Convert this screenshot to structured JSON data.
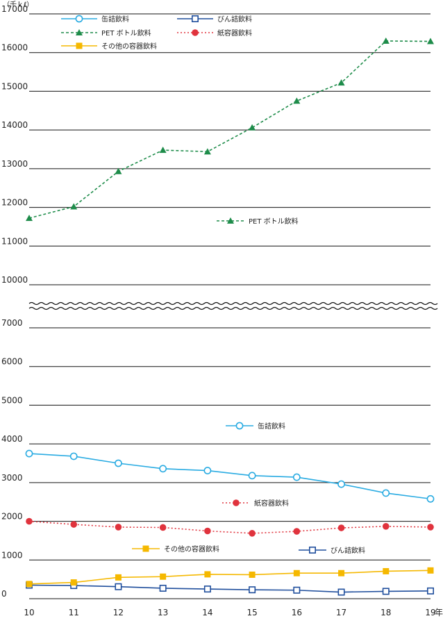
{
  "chart_data": {
    "type": "line",
    "unit": "（千ｋℓ）",
    "year_suffix": "年",
    "categories": [
      "10",
      "11",
      "12",
      "13",
      "14",
      "15",
      "16",
      "17",
      "18",
      "19"
    ],
    "y_axis_broken": true,
    "axis_break_between": [
      7500,
      9500
    ],
    "yticks_lower": [
      0,
      1000,
      2000,
      3000,
      4000,
      5000,
      6000,
      7000
    ],
    "yticks_upper": [
      10000,
      11000,
      12000,
      13000,
      14000,
      15000,
      16000,
      17000
    ],
    "grid": true,
    "legend_position": "top",
    "series": [
      {
        "name": "缶詰飲料",
        "color": "#29abe2",
        "line": "solid",
        "marker": "circle-open",
        "values": [
          3750,
          3680,
          3500,
          3360,
          3310,
          3180,
          3140,
          2960,
          2730,
          2580
        ]
      },
      {
        "name": "びん詰飲料",
        "color": "#1f4e9c",
        "line": "solid",
        "marker": "square-open",
        "values": [
          350,
          340,
          310,
          270,
          250,
          230,
          220,
          170,
          190,
          200
        ]
      },
      {
        "name": "PET ボトル飲料",
        "color": "#1e8c4a",
        "line": "dashed",
        "marker": "triangle",
        "values": [
          11720,
          12020,
          12930,
          13480,
          13440,
          14060,
          14750,
          15220,
          16300,
          16290
        ]
      },
      {
        "name": "紙容器飲料",
        "color": "#e0333d",
        "line": "dotted",
        "marker": "circle-filled",
        "values": [
          2000,
          1920,
          1850,
          1840,
          1750,
          1690,
          1740,
          1830,
          1870,
          1850
        ]
      },
      {
        "name": "その他の容器飲料",
        "color": "#f5b800",
        "line": "solid",
        "marker": "square-filled",
        "values": [
          380,
          420,
          550,
          570,
          630,
          620,
          660,
          660,
          710,
          730
        ]
      }
    ]
  }
}
